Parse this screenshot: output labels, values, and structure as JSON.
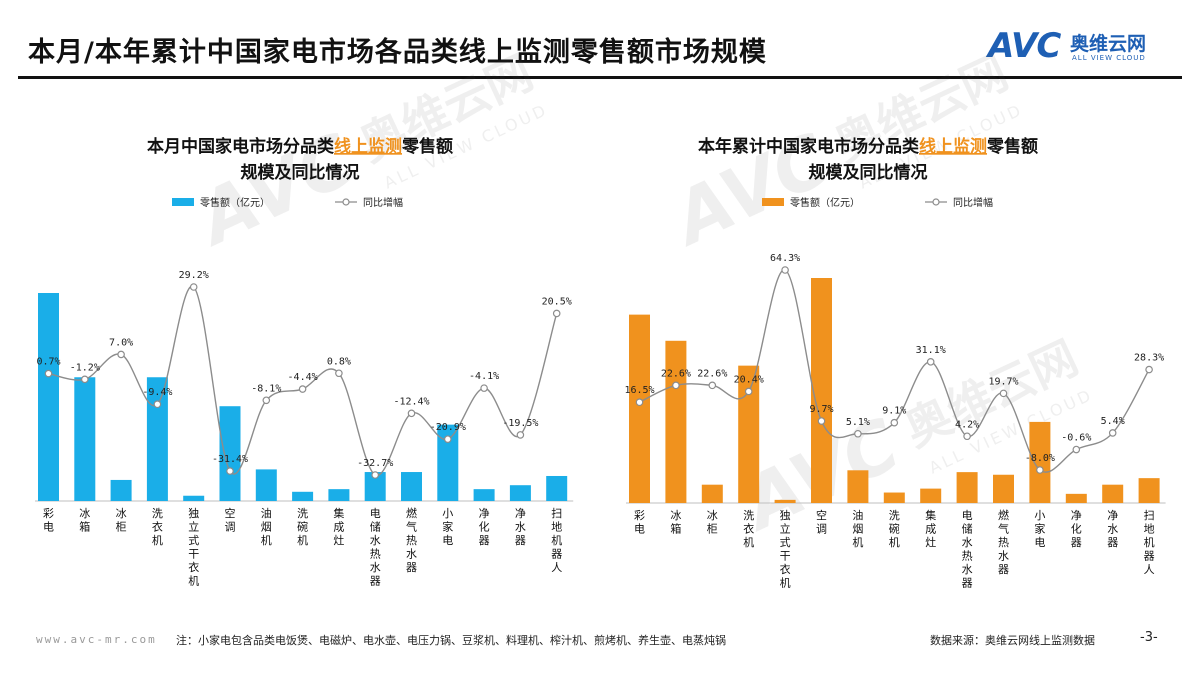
{
  "page": {
    "title": "本月/本年累计中国家电市场各品类线上监测零售额市场规模",
    "logo_mark": "AVC",
    "logo_cn": "奥维云网",
    "logo_en": "ALL VIEW CLOUD",
    "watermark_mark": "AVC",
    "watermark_cn": "奥维云网",
    "watermark_en": "ALL VIEW CLOUD",
    "footer_url": "www.avc-mr.com",
    "footer_note": "注：小家电包含品类电饭煲、电磁炉、电水壶、电压力锅、豆浆机、料理机、榨汁机、煎烤机、养生壶、电蒸炖锅",
    "footer_source": "数据来源：奥维云网线上监测数据",
    "page_number": "-3-"
  },
  "colors": {
    "blue_bar": "#1aaee8",
    "orange_bar": "#f0921e",
    "line": "#8c8c8c",
    "title_highlight": "#f0921e",
    "logo": "#1e5fb4"
  },
  "chart_data": [
    {
      "type": "bar",
      "title_prefix": "本月中国家电市场分品类",
      "title_highlight": "线上监测",
      "title_suffix": "零售额",
      "title_line2": "规模及同比情况",
      "legend_bar": "零售额（亿元）",
      "legend_line": "同比增幅",
      "categories": [
        "彩电",
        "冰箱",
        "冰柜",
        "洗衣机",
        "独立式干衣机",
        "空调",
        "油烟机",
        "洗碗机",
        "集成灶",
        "电储水热水器",
        "燃气热水器",
        "小家电",
        "净化器",
        "净水器",
        "扫地机器人"
      ],
      "series": [
        {
          "name": "零售额（亿元）",
          "kind": "bar",
          "values": [
            79,
            47,
            8,
            47,
            2,
            36,
            12,
            3.5,
            4.5,
            11,
            11,
            29,
            4.5,
            6,
            9.5
          ]
        },
        {
          "name": "同比增幅",
          "kind": "line",
          "values": [
            0.7,
            -1.2,
            7.0,
            -9.4,
            29.2,
            -31.4,
            -8.1,
            -4.4,
            0.8,
            -32.7,
            -12.4,
            -20.9,
            -4.1,
            -19.5,
            20.5
          ]
        }
      ],
      "labels": [
        "0.7%",
        "-1.2%",
        "7.0%",
        "-9.4%",
        "29.2%",
        "-31.4%",
        "-8.1%",
        "-4.4%",
        "0.8%",
        "-32.7%",
        "-12.4%",
        "-20.9%",
        "-4.1%",
        "-19.5%",
        "20.5%"
      ]
    },
    {
      "type": "bar",
      "title_prefix": "本年累计中国家电市场分品类",
      "title_highlight": "线上监测",
      "title_suffix": "零售额",
      "title_line2": "规模及同比情况",
      "legend_bar": "零售额（亿元）",
      "legend_line": "同比增幅",
      "categories": [
        "彩电",
        "冰箱",
        "冰柜",
        "洗衣机",
        "独立式干衣机",
        "空调",
        "油烟机",
        "洗碗机",
        "集成灶",
        "电储水热水器",
        "燃气热水器",
        "小家电",
        "净化器",
        "净水器",
        "扫地机器人"
      ],
      "series": [
        {
          "name": "零售额（亿元）",
          "kind": "bar",
          "values": [
            720,
            620,
            70,
            525,
            12,
            860,
            125,
            40,
            55,
            118,
            108,
            310,
            35,
            70,
            95
          ]
        },
        {
          "name": "同比增幅",
          "kind": "line",
          "values": [
            16.5,
            22.6,
            22.6,
            20.4,
            64.3,
            9.7,
            5.1,
            9.1,
            31.1,
            4.2,
            19.7,
            -8.0,
            -0.6,
            5.4,
            28.3
          ]
        }
      ],
      "labels": [
        "16.5%",
        "22.6%",
        "22.6%",
        "20.4%",
        "64.3%",
        "9.7%",
        "5.1%",
        "9.1%",
        "31.1%",
        "4.2%",
        "19.7%",
        "-8.0%",
        "-0.6%",
        "5.4%",
        "28.3%"
      ]
    }
  ]
}
